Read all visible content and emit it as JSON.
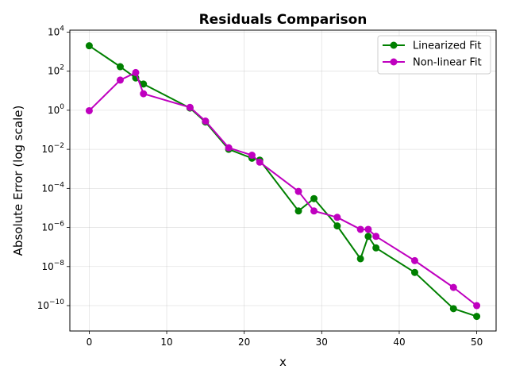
{
  "chart_data": {
    "type": "line",
    "title": "Residuals Comparison",
    "xlabel": "x",
    "ylabel": "Absolute Error (log scale)",
    "yscale": "log",
    "xlim": [
      -2.5,
      52.5
    ],
    "ylim_exponent": [
      -11.3,
      4.1
    ],
    "xticks": [
      0,
      10,
      20,
      30,
      40,
      50
    ],
    "xtick_labels": [
      "0",
      "10",
      "20",
      "30",
      "40",
      "50"
    ],
    "yticks_exponent": [
      -10,
      -8,
      -6,
      -4,
      -2,
      0,
      2,
      4
    ],
    "ytick_labels": [
      {
        "base": "10",
        "exp": "−10"
      },
      {
        "base": "10",
        "exp": "−8"
      },
      {
        "base": "10",
        "exp": "−6"
      },
      {
        "base": "10",
        "exp": "−4"
      },
      {
        "base": "10",
        "exp": "−2"
      },
      {
        "base": "10",
        "exp": "0"
      },
      {
        "base": "10",
        "exp": "2"
      },
      {
        "base": "10",
        "exp": "4"
      }
    ],
    "grid": true,
    "legend_position": "top-right",
    "series": [
      {
        "name": "Linearized Fit",
        "color": "#008000",
        "x": [
          0,
          4,
          6,
          7,
          13,
          15,
          18,
          21,
          22,
          27,
          29,
          32,
          35,
          36,
          37,
          42,
          47,
          50
        ],
        "y": [
          2000,
          170,
          45,
          22,
          1.3,
          0.25,
          0.01,
          0.0035,
          0.0028,
          7e-06,
          3e-05,
          1.2e-06,
          2.5e-08,
          3.5e-07,
          9e-08,
          5e-09,
          7e-11,
          2.8e-11
        ]
      },
      {
        "name": "Non-linear Fit",
        "color": "#bf00bf",
        "x": [
          0,
          4,
          6,
          7,
          13,
          15,
          18,
          21,
          22,
          27,
          29,
          32,
          35,
          36,
          37,
          42,
          47,
          50
        ],
        "y": [
          0.95,
          35,
          85,
          7,
          1.4,
          0.28,
          0.012,
          0.005,
          0.0022,
          7e-05,
          7e-06,
          3.3e-06,
          8e-07,
          8e-07,
          3.5e-07,
          2e-08,
          8.5e-10,
          1e-10
        ]
      }
    ]
  }
}
